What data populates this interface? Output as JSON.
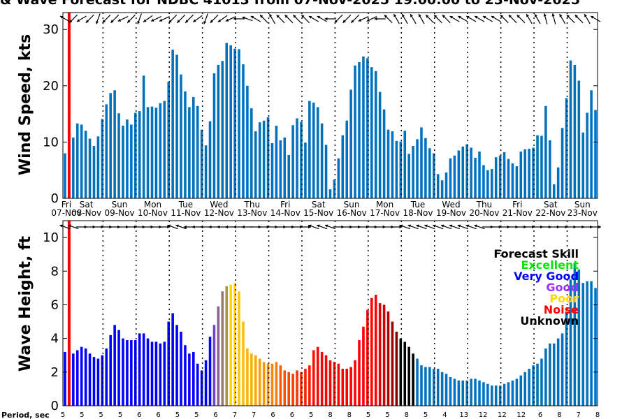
{
  "chart_data": {
    "type": "bar",
    "title": "& Wave Forecast for NDBC 41013 from 07-Nov-2025 19:00:00 to 23-Nov-2025",
    "start_hour": 19,
    "step_hours": 3,
    "now_index": 1,
    "wind": {
      "ylabel": "Wind Speed, kts",
      "ylim": [
        0,
        33
      ],
      "yticks": [
        "0",
        "10",
        "20",
        "30"
      ],
      "values": [
        8.0,
        9.8,
        10.8,
        13.3,
        13.1,
        12.0,
        10.6,
        9.3,
        11.0,
        14.1,
        16.7,
        18.7,
        19.2,
        15.1,
        12.9,
        14.0,
        13.1,
        15.2,
        15.5,
        21.8,
        16.2,
        16.3,
        16.1,
        16.9,
        17.3,
        20.7,
        26.4,
        25.5,
        22.0,
        19.0,
        16.2,
        18.0,
        16.4,
        12.2,
        9.4,
        13.7,
        22.2,
        23.7,
        24.4,
        27.6,
        27.2,
        26.6,
        26.5,
        23.8,
        20.0,
        16.0,
        11.9,
        13.5,
        13.8,
        14.4,
        9.8,
        12.9,
        10.3,
        10.8,
        7.7,
        13.0,
        14.2,
        13.6,
        9.9,
        17.3,
        17.0,
        16.2,
        13.3,
        9.5,
        1.6,
        3.3,
        7.1,
        11.2,
        13.8,
        19.3,
        23.6,
        24.2,
        25.2,
        24.9,
        23.3,
        22.6,
        18.9,
        15.8,
        12.2,
        11.9,
        10.2,
        10.1,
        12.0,
        7.9,
        9.3,
        10.5,
        12.6,
        10.7,
        8.9,
        8.0,
        4.3,
        3.2,
        4.6,
        7.1,
        7.6,
        8.5,
        9.2,
        9.6,
        9.0,
        7.2,
        8.3,
        5.9,
        5.0,
        5.2,
        7.3,
        7.6,
        8.2,
        7.0,
        6.2,
        5.7,
        8.3,
        8.7,
        8.8,
        9.0,
        11.2,
        11.1,
        16.4,
        10.3,
        2.5,
        5.5,
        12.5,
        17.8,
        24.5,
        23.7,
        20.9,
        11.7,
        15.2,
        19.2,
        15.7
      ]
    },
    "wave": {
      "ylabel": "Wave Height, ft",
      "ylim": [
        0,
        11
      ],
      "yticks": [
        "0",
        "2",
        "4",
        "6",
        "8",
        "10"
      ],
      "values": [
        3.2,
        3.1,
        3.1,
        3.3,
        3.5,
        3.4,
        3.1,
        2.9,
        2.8,
        3.0,
        3.4,
        4.2,
        4.8,
        4.5,
        4.0,
        3.9,
        3.9,
        3.9,
        4.3,
        4.3,
        4.0,
        3.8,
        3.8,
        3.7,
        3.8,
        5.0,
        5.5,
        4.8,
        4.4,
        3.6,
        3.1,
        3.2,
        2.5,
        2.1,
        2.7,
        4.1,
        4.8,
        5.9,
        6.8,
        7.1,
        7.2,
        7.3,
        6.8,
        5.0,
        3.4,
        3.1,
        3.0,
        2.8,
        2.6,
        2.5,
        2.5,
        2.6,
        2.4,
        2.1,
        2.0,
        1.9,
        2.1,
        2.0,
        2.2,
        2.4,
        3.3,
        3.5,
        3.2,
        3.0,
        2.7,
        2.6,
        2.5,
        2.2,
        2.2,
        2.3,
        2.7,
        3.9,
        4.7,
        5.7,
        6.4,
        6.6,
        6.1,
        6.0,
        5.6,
        5.0,
        4.4,
        4.0,
        3.8,
        3.5,
        3.1,
        2.8,
        2.4,
        2.3,
        2.3,
        2.2,
        2.2,
        2.0,
        1.9,
        1.7,
        1.6,
        1.5,
        1.5,
        1.5,
        1.6,
        1.6,
        1.5,
        1.4,
        1.3,
        1.2,
        1.2,
        1.2,
        1.3,
        1.4,
        1.5,
        1.6,
        1.8,
        2.0,
        2.2,
        2.4,
        2.5,
        2.8,
        3.4,
        3.7,
        3.7,
        4.0,
        4.3,
        5.6,
        7.5,
        8.5,
        8.1,
        7.3,
        7.4,
        7.4,
        7.0
      ],
      "skill": [
        "Very Good",
        "Very Good",
        "Very Good",
        "Very Good",
        "Very Good",
        "Very Good",
        "Very Good",
        "Very Good",
        "Very Good",
        "Very Good",
        "Very Good",
        "Very Good",
        "Very Good",
        "Very Good",
        "Very Good",
        "Very Good",
        "Very Good",
        "Very Good",
        "Very Good",
        "Very Good",
        "Very Good",
        "Very Good",
        "Very Good",
        "Very Good",
        "Very Good",
        "Very Good",
        "Very Good",
        "Very Good",
        "Very Good",
        "Very Good",
        "Very Good",
        "Very Good",
        "Very Good",
        "Very Good",
        "Very Good",
        "Very Good",
        "Good",
        "Good",
        "Good",
        "Good",
        "Poor",
        "Poor",
        "Poor",
        "Poor",
        "Poor",
        "Poor",
        "Poor",
        "Poor",
        "Poor",
        "Poor",
        "Poor",
        "Poor",
        "Noise",
        "Noise",
        "Noise",
        "Noise",
        "Noise",
        "Noise",
        "Noise",
        "Noise",
        "Noise",
        "Noise",
        "Noise",
        "Noise",
        "Noise",
        "Noise",
        "Noise",
        "Noise",
        "Noise",
        "Noise",
        "Noise",
        "Noise",
        "Noise",
        "Noise",
        "Noise",
        "Noise",
        "Noise",
        "Noise",
        "Noise",
        "Noise",
        "Noise",
        "Unknown",
        "Unknown",
        "Unknown",
        "Unknown",
        "none",
        "none",
        "none",
        "none",
        "none",
        "none",
        "none",
        "none",
        "none",
        "none",
        "none",
        "none",
        "none",
        "none",
        "none",
        "none",
        "none",
        "none",
        "none",
        "none",
        "none",
        "none",
        "none",
        "none",
        "none",
        "none",
        "none",
        "none",
        "none",
        "none",
        "none",
        "none",
        "none",
        "none",
        "none",
        "none",
        "none",
        "none",
        "none",
        "none",
        "none",
        "none",
        "none",
        "none"
      ]
    },
    "wind_dir_deg": [
      300,
      225,
      225,
      235,
      240,
      225,
      225,
      235,
      200,
      200,
      225,
      225,
      225,
      235,
      245,
      245,
      225,
      200,
      200,
      225,
      235,
      235,
      245,
      245,
      245,
      225,
      225,
      225,
      225,
      225,
      225,
      235,
      235,
      200,
      200,
      225,
      225,
      225,
      235,
      245,
      245,
      245,
      270,
      270,
      290,
      290,
      300,
      315,
      315,
      315,
      330,
      315,
      315,
      315,
      315,
      315,
      315,
      315,
      315,
      300,
      300,
      300,
      300,
      270,
      270,
      225,
      225,
      225,
      225,
      225,
      225,
      235,
      245,
      245,
      245,
      245,
      270,
      300,
      315,
      315,
      330,
      330,
      330,
      330,
      330,
      330,
      330,
      315,
      315,
      315,
      315,
      315,
      315,
      315,
      300,
      300,
      300,
      300,
      300,
      300,
      300,
      300,
      300,
      300,
      300,
      300,
      315,
      315,
      315,
      315,
      315,
      315,
      330,
      330,
      330,
      330,
      345,
      345,
      345,
      345,
      330,
      330,
      315,
      315,
      315,
      315,
      330,
      330,
      300
    ],
    "wave_dir_deg": [
      290,
      290,
      290,
      90,
      90,
      90,
      90,
      90,
      90,
      90,
      90,
      90,
      90,
      90,
      90,
      90,
      90,
      90,
      90,
      90,
      90,
      90,
      90,
      90,
      90,
      90,
      290,
      290,
      290,
      290,
      270,
      270,
      270,
      270,
      270,
      270,
      270,
      270,
      270,
      270,
      270,
      270,
      270,
      270,
      270,
      90,
      90,
      90,
      90,
      90,
      90,
      90,
      90,
      90,
      90,
      90,
      90,
      90,
      90,
      290,
      290,
      290,
      290,
      290,
      290,
      90,
      90,
      90,
      90,
      90,
      90,
      90,
      90,
      90,
      90,
      90,
      90,
      90,
      90,
      90,
      90,
      290,
      290,
      290,
      290,
      290,
      290,
      290,
      290,
      290,
      290,
      290,
      290,
      290,
      290,
      290,
      290,
      290,
      290,
      290,
      290,
      90,
      90,
      90,
      90,
      90,
      90,
      90,
      90,
      90,
      90,
      90,
      90,
      90,
      90,
      90,
      90,
      90,
      90,
      90,
      90,
      90,
      90,
      90,
      90,
      90,
      90,
      90,
      90
    ],
    "days": [
      {
        "dow": "Fri",
        "date": "07-Nov"
      },
      {
        "dow": "Sat",
        "date": "08-Nov"
      },
      {
        "dow": "Sun",
        "date": "09-Nov"
      },
      {
        "dow": "Mon",
        "date": "10-Nov"
      },
      {
        "dow": "Tue",
        "date": "11-Nov"
      },
      {
        "dow": "Wed",
        "date": "12-Nov"
      },
      {
        "dow": "Thu",
        "date": "13-Nov"
      },
      {
        "dow": "Fri",
        "date": "14-Nov"
      },
      {
        "dow": "Sat",
        "date": "15-Nov"
      },
      {
        "dow": "Sun",
        "date": "16-Nov"
      },
      {
        "dow": "Mon",
        "date": "17-Nov"
      },
      {
        "dow": "Tue",
        "date": "18-Nov"
      },
      {
        "dow": "Wed",
        "date": "19-Nov"
      },
      {
        "dow": "Thu",
        "date": "20-Nov"
      },
      {
        "dow": "Fri",
        "date": "21-Nov"
      },
      {
        "dow": "Sat",
        "date": "22-Nov"
      },
      {
        "dow": "Sun",
        "date": "23-Nov"
      }
    ],
    "period_label": "Period, sec",
    "periods": [
      "5",
      "5",
      "5",
      "5",
      "6",
      "6",
      "5",
      "5",
      "6",
      "7",
      "7",
      "6",
      "6",
      "5",
      "8",
      "8",
      "5",
      "5",
      "8",
      "5",
      "4",
      "13",
      "12",
      "12",
      "12",
      "6",
      "8",
      "7",
      "8"
    ],
    "legend": {
      "title": "Forecast Skill",
      "entries": [
        {
          "label": "Excellent",
          "color": "#00e600"
        },
        {
          "label": "Very Good",
          "color": "#0000ff"
        },
        {
          "label": "Good",
          "color": "#9933ff"
        },
        {
          "label": "Poor",
          "color": "#ffd700"
        },
        {
          "label": "Noise",
          "color": "#ff0000"
        },
        {
          "label": "Unknown",
          "color": "#000000"
        }
      ]
    },
    "colors": {
      "bar": "#0072bd",
      "now_line": "#ff0000",
      "grid": "#000000"
    }
  }
}
